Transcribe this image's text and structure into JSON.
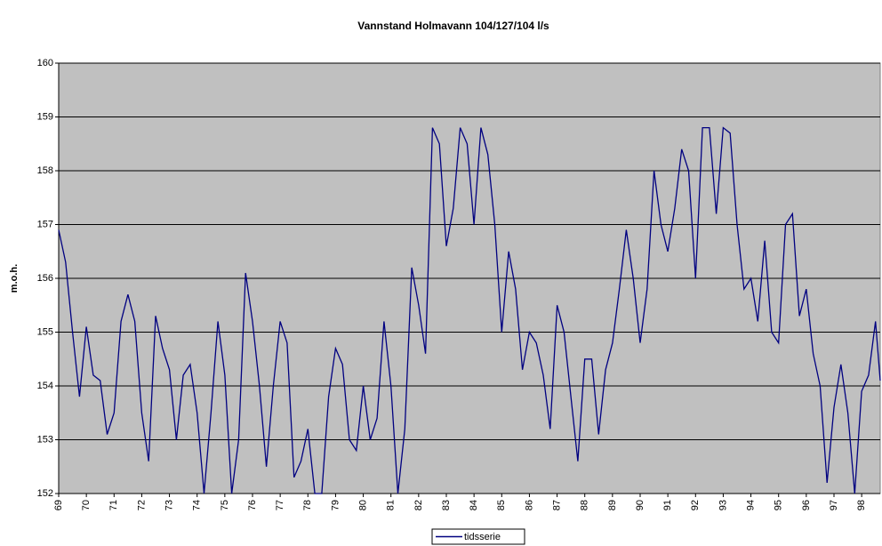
{
  "chart_data": {
    "type": "line",
    "title": "Vannstand Holmavann 104/127/104 l/s",
    "y_label": "m.o.h.",
    "x": [
      69,
      69.25,
      69.5,
      69.75,
      70,
      70.25,
      70.5,
      70.75,
      71,
      71.25,
      71.5,
      71.75,
      72,
      72.25,
      72.5,
      72.75,
      73,
      73.25,
      73.5,
      73.75,
      74,
      74.25,
      74.5,
      74.75,
      75,
      75.25,
      75.5,
      75.75,
      76,
      76.25,
      76.5,
      76.75,
      77,
      77.25,
      77.5,
      77.75,
      78,
      78.25,
      78.5,
      78.75,
      79,
      79.25,
      79.5,
      79.75,
      80,
      80.25,
      80.5,
      80.75,
      81,
      81.25,
      81.5,
      81.75,
      82,
      82.25,
      82.5,
      82.75,
      83,
      83.25,
      83.5,
      83.75,
      84,
      84.25,
      84.5,
      84.75,
      85,
      85.25,
      85.5,
      85.75,
      86,
      86.25,
      86.5,
      86.75,
      87,
      87.25,
      87.5,
      87.75,
      88,
      88.25,
      88.5,
      88.75,
      89,
      89.25,
      89.5,
      89.75,
      90,
      90.25,
      90.5,
      90.75,
      91,
      91.25,
      91.5,
      91.75,
      92,
      92.25,
      92.5,
      92.75,
      93,
      93.25,
      93.5,
      93.75,
      94,
      94.25,
      94.5,
      94.75,
      95,
      95.25,
      95.5,
      95.75,
      96,
      96.25,
      96.5,
      96.75,
      97,
      97.25,
      97.5,
      97.75,
      98,
      98.25,
      98.5,
      98.67
    ],
    "series": [
      {
        "name": "tidsserie",
        "color": "#000080",
        "values": [
          156.9,
          156.3,
          155.0,
          153.8,
          155.1,
          154.2,
          154.1,
          153.1,
          153.5,
          155.2,
          155.7,
          155.2,
          153.5,
          152.6,
          155.3,
          154.7,
          154.3,
          153.0,
          154.2,
          154.4,
          153.5,
          152.0,
          153.5,
          155.2,
          154.2,
          152.0,
          153.0,
          156.1,
          155.2,
          154.0,
          152.5,
          154.0,
          155.2,
          154.8,
          152.3,
          152.6,
          153.2,
          152.0,
          152.0,
          153.8,
          154.7,
          154.4,
          153.0,
          152.8,
          154.0,
          153.0,
          153.4,
          155.2,
          154.0,
          152.0,
          153.2,
          156.2,
          155.5,
          154.6,
          158.8,
          158.5,
          156.6,
          157.3,
          158.8,
          158.5,
          157.0,
          158.8,
          158.3,
          157.0,
          155.0,
          156.5,
          155.8,
          154.3,
          155.0,
          154.8,
          154.2,
          153.2,
          155.5,
          155.0,
          153.8,
          152.6,
          154.5,
          154.5,
          153.1,
          154.3,
          154.8,
          155.8,
          156.9,
          156.0,
          154.8,
          155.8,
          158.0,
          157.0,
          156.5,
          157.3,
          158.4,
          158.0,
          156.0,
          158.8,
          158.8,
          157.2,
          158.8,
          158.7,
          157.0,
          155.8,
          156.0,
          155.2,
          156.7,
          155.0,
          154.8,
          157.0,
          157.2,
          155.3,
          155.8,
          154.6,
          154.0,
          152.2,
          153.6,
          154.4,
          153.5,
          152.0,
          153.9,
          154.2,
          155.2,
          154.1
        ]
      }
    ],
    "xlim": [
      69,
      98.67
    ],
    "xticks": [
      69,
      70,
      71,
      72,
      73,
      74,
      75,
      76,
      77,
      78,
      79,
      80,
      81,
      82,
      83,
      84,
      85,
      86,
      87,
      88,
      89,
      90,
      91,
      92,
      93,
      94,
      95,
      96,
      97,
      98
    ],
    "ylim": [
      152,
      160
    ],
    "yticks": [
      152,
      153,
      154,
      155,
      156,
      157,
      158,
      159,
      160
    ],
    "grid": true,
    "legend": "bottom"
  }
}
